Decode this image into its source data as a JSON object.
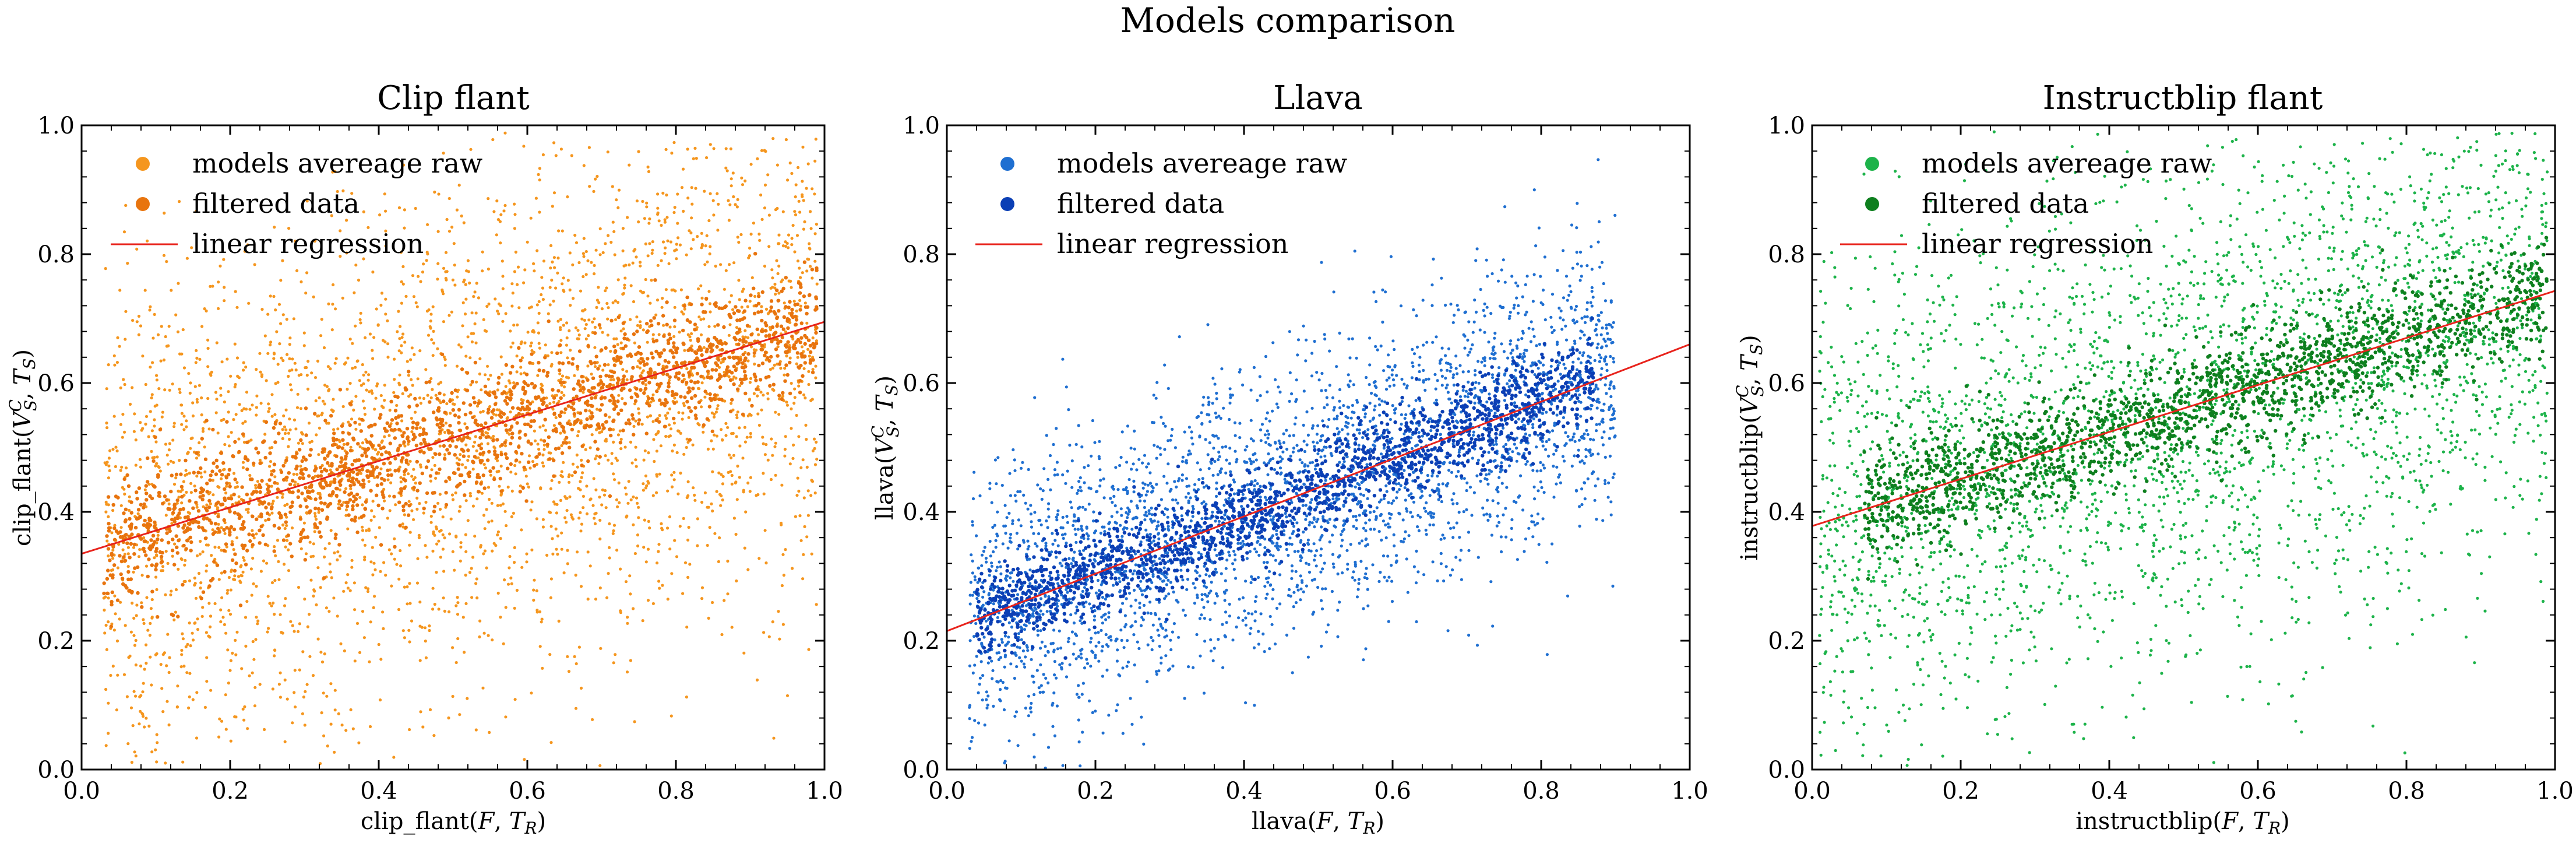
{
  "suptitle": "Models comparison",
  "chart_data": [
    {
      "type": "scatter",
      "title": "Clip flant",
      "xlabel": "clip_flant(F,T_R)",
      "ylabel": "clip_flant(V_S^C,T_S)",
      "xlim": [
        0.0,
        1.0
      ],
      "ylim": [
        0.0,
        1.0
      ],
      "x_ticks": [
        "0.0",
        "0.2",
        "0.4",
        "0.6",
        "0.8",
        "1.0"
      ],
      "y_ticks": [
        "0.0",
        "0.2",
        "0.4",
        "0.6",
        "0.8",
        "1.0"
      ],
      "legend_position": "top-left",
      "legend": [
        "models avereage raw",
        "filtered data",
        "linear regression"
      ],
      "colors": {
        "raw": "#f5961e",
        "filtered": "#e8740e",
        "regression": "#e8231c"
      },
      "regression": {
        "intercept": 0.335,
        "slope": 0.36
      },
      "raw_x_range": [
        0.03,
        0.99
      ],
      "raw_y_spread": 0.2,
      "filtered_x_range": [
        0.03,
        0.99
      ],
      "filtered_y_spread": 0.05
    },
    {
      "type": "scatter",
      "title": "Llava",
      "xlabel": "llava(F,T_R)",
      "ylabel": "llava(V_S^C,T_S)",
      "xlim": [
        0.0,
        1.0
      ],
      "ylim": [
        0.0,
        1.0
      ],
      "x_ticks": [
        "0.0",
        "0.2",
        "0.4",
        "0.6",
        "0.8",
        "1.0"
      ],
      "y_ticks": [
        "0.0",
        "0.2",
        "0.4",
        "0.6",
        "0.8",
        "1.0"
      ],
      "legend_position": "top-left",
      "legend": [
        "models avereage raw",
        "filtered data",
        "linear regression"
      ],
      "colors": {
        "raw": "#1f6fd1",
        "filtered": "#0b3fb5",
        "regression": "#e8231c"
      },
      "regression": {
        "intercept": 0.215,
        "slope": 0.445
      },
      "raw_x_range": [
        0.03,
        0.9
      ],
      "raw_y_spread": 0.11,
      "filtered_x_range": [
        0.04,
        0.87
      ],
      "filtered_y_spread": 0.035
    },
    {
      "type": "scatter",
      "title": "Instructblip flant",
      "xlabel": "instructblip(F,T_R)",
      "ylabel": "instructblip(V_S^C,T_S)",
      "xlim": [
        0.0,
        1.0
      ],
      "ylim": [
        0.0,
        1.0
      ],
      "x_ticks": [
        "0.0",
        "0.2",
        "0.4",
        "0.6",
        "0.8",
        "1.0"
      ],
      "y_ticks": [
        "0.0",
        "0.2",
        "0.4",
        "0.6",
        "0.8",
        "1.0"
      ],
      "legend_position": "top-left",
      "legend": [
        "models avereage raw",
        "filtered data",
        "linear regression"
      ],
      "colors": {
        "raw": "#1db34a",
        "filtered": "#0e7f1e",
        "regression": "#e8231c"
      },
      "regression": {
        "intercept": 0.378,
        "slope": 0.365
      },
      "raw_x_range": [
        0.01,
        0.99
      ],
      "raw_y_spread": 0.2,
      "filtered_x_range": [
        0.07,
        0.99
      ],
      "filtered_y_spread": 0.045
    }
  ]
}
